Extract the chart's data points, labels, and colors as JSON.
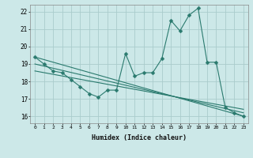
{
  "xlabel": "Humidex (Indice chaleur)",
  "bg_color": "#cce8e8",
  "grid_color": "#aacccc",
  "line_color": "#2a7a6e",
  "xlim": [
    -0.5,
    23.5
  ],
  "ylim": [
    15.6,
    22.4
  ],
  "yticks": [
    16,
    17,
    18,
    19,
    20,
    21,
    22
  ],
  "xticks": [
    0,
    1,
    2,
    3,
    4,
    5,
    6,
    7,
    8,
    9,
    10,
    11,
    12,
    13,
    14,
    15,
    16,
    17,
    18,
    19,
    20,
    21,
    22,
    23
  ],
  "series1_x": [
    0,
    1,
    2,
    3,
    4,
    5,
    6,
    7,
    8,
    9,
    10,
    11,
    12,
    13,
    14,
    15,
    16,
    17,
    18,
    19,
    20,
    21,
    22,
    23
  ],
  "series1_y": [
    19.4,
    19.0,
    18.6,
    18.5,
    18.1,
    17.7,
    17.3,
    17.1,
    17.5,
    17.5,
    19.6,
    18.3,
    18.5,
    18.5,
    19.3,
    21.5,
    20.9,
    21.8,
    22.2,
    19.1,
    19.1,
    16.5,
    16.2,
    16.0
  ],
  "reg_lines": [
    {
      "x": [
        0,
        23
      ],
      "y": [
        19.4,
        16.0
      ]
    },
    {
      "x": [
        0,
        23
      ],
      "y": [
        19.0,
        16.2
      ]
    },
    {
      "x": [
        0,
        23
      ],
      "y": [
        18.6,
        16.4
      ]
    }
  ]
}
